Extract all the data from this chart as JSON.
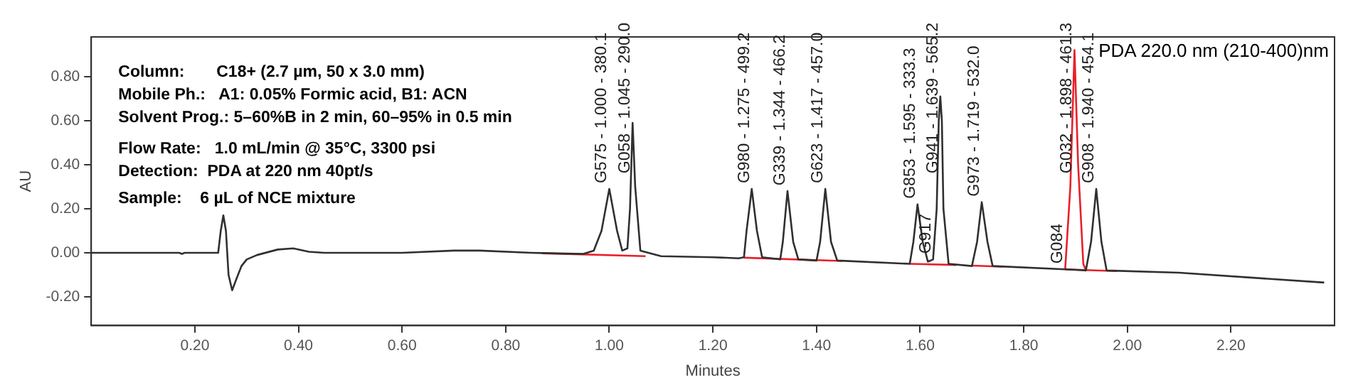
{
  "chart_data": {
    "type": "line",
    "xlabel": "Minutes",
    "ylabel": "AU",
    "xlim": [
      0,
      2.4
    ],
    "ylim": [
      -0.33,
      0.98
    ],
    "xticks": [
      {
        "value": 0.2,
        "label": "0.20"
      },
      {
        "value": 0.4,
        "label": "0.40"
      },
      {
        "value": 0.6,
        "label": "0.60"
      },
      {
        "value": 0.8,
        "label": "0.80"
      },
      {
        "value": 1.0,
        "label": "1.00"
      },
      {
        "value": 1.2,
        "label": "1.20"
      },
      {
        "value": 1.4,
        "label": "1.40"
      },
      {
        "value": 1.6,
        "label": "1.60"
      },
      {
        "value": 1.8,
        "label": "1.80"
      },
      {
        "value": 2.0,
        "label": "2.00"
      },
      {
        "value": 2.2,
        "label": "2.20"
      }
    ],
    "yticks": [
      {
        "value": -0.2,
        "label": "-0.20"
      },
      {
        "value": 0,
        "label": "0.00"
      },
      {
        "value": 0.2,
        "label": "0.20"
      },
      {
        "value": 0.4,
        "label": "0.40"
      },
      {
        "value": 0.6,
        "label": "0.60"
      },
      {
        "value": 0.8,
        "label": "0.80"
      }
    ],
    "grid": false,
    "legend": false,
    "marker": "none",
    "line_style": "solid",
    "series": [
      {
        "color": "#303030",
        "x": [
          0,
          0.17,
          0.175,
          0.18,
          0.245,
          0.25,
          0.255,
          0.26,
          0.265,
          0.272,
          0.28,
          0.29,
          0.3,
          0.32,
          0.36,
          0.39,
          0.42,
          0.45,
          0.6,
          0.7,
          0.75,
          0.85,
          0.95,
          0.97,
          0.985,
          1.0,
          1.015,
          1.025,
          1.035,
          1.04,
          1.045,
          1.05,
          1.06,
          1.1,
          1.2,
          1.25,
          1.26,
          1.265,
          1.275,
          1.285,
          1.295,
          1.33,
          1.335,
          1.344,
          1.355,
          1.365,
          1.4,
          1.407,
          1.417,
          1.428,
          1.44,
          1.58,
          1.587,
          1.595,
          1.605,
          1.615,
          1.625,
          1.632,
          1.636,
          1.639,
          1.642,
          1.645,
          1.655,
          1.7,
          1.71,
          1.719,
          1.73,
          1.74,
          1.88,
          1.92,
          1.93,
          1.94,
          1.95,
          1.96,
          2.1,
          2.38
        ],
        "values": [
          0,
          0,
          -0.005,
          0,
          0,
          0.1,
          0.17,
          0.1,
          -0.1,
          -0.17,
          -0.12,
          -0.06,
          -0.03,
          -0.01,
          0.015,
          0.02,
          0.005,
          0,
          0,
          0.01,
          0.01,
          0,
          -0.005,
          0.01,
          0.1,
          0.29,
          0.1,
          0.01,
          0.02,
          0.2,
          0.59,
          0.3,
          0.01,
          -0.015,
          -0.02,
          -0.025,
          -0.02,
          0.1,
          0.29,
          0.1,
          -0.02,
          -0.03,
          0.05,
          0.28,
          0.05,
          -0.03,
          -0.035,
          0.05,
          0.29,
          0.05,
          -0.035,
          -0.05,
          0.05,
          0.22,
          0.05,
          -0.04,
          -0.03,
          0.2,
          0.6,
          0.71,
          0.6,
          0.2,
          -0.05,
          -0.06,
          0.05,
          0.23,
          0.05,
          -0.06,
          -0.075,
          -0.08,
          0.05,
          0.29,
          0.05,
          -0.08,
          -0.09,
          -0.135
        ]
      },
      {
        "color": "#e8202a",
        "x": [
          1.88,
          1.89,
          1.898,
          1.905,
          1.915,
          1.92
        ],
        "values": [
          -0.075,
          0.3,
          0.92,
          0.4,
          -0.05,
          -0.08
        ]
      },
      {
        "color": "#e8202a",
        "x": [
          0.87,
          1.07,
          1.1,
          1.26,
          1.45,
          1.5,
          1.58,
          1.67,
          1.685,
          1.7,
          1.76,
          1.8,
          1.88,
          1.98
        ],
        "values": [
          -0.002,
          -0.015,
          null,
          -0.022,
          -0.037,
          null,
          -0.05,
          -0.055,
          null,
          -0.058,
          -0.063,
          null,
          -0.075,
          -0.083
        ]
      }
    ],
    "annotations": [
      "Column:       C18+ (2.7 µm, 50 x 3.0 mm)",
      "Mobile Ph.:   A1: 0.05% Formic acid, B1: ACN",
      "Solvent Prog.: 5–60%B in 2 min, 60–95% in 0.5 min",
      "Flow Rate:   1.0 mL/min @ 35°C, 3300 psi",
      "Detection:  PDA at 220 nm 40pt/s",
      "Sample:    6 µL of NCE mixture",
      "PDA 220.0 nm (210-400)nm",
      {
        "text": "G575 - 1.000 - 380.1",
        "x": 1.0,
        "y": 0.29
      },
      {
        "text": "G058 - 1.045 - 290.0",
        "x": 1.045,
        "y": 0.59
      },
      {
        "text": "G980 - 1.275 - 499.2",
        "x": 1.275,
        "y": 0.29
      },
      {
        "text": "G339 - 1.344 - 466.2",
        "x": 1.344,
        "y": 0.28
      },
      {
        "text": "G623 - 1.417 - 457.0",
        "x": 1.417,
        "y": 0.29
      },
      {
        "text": "G853 - 1.595 - 333.3",
        "x": 1.595,
        "y": 0.22
      },
      {
        "text": "G917",
        "x": 1.625,
        "y": -0.03
      },
      {
        "text": "G941 - 1.639 - 565.2",
        "x": 1.639,
        "y": 0.71
      },
      {
        "text": "G973 - 1.719 - 532.0",
        "x": 1.719,
        "y": 0.23
      },
      {
        "text": "G084",
        "x": 1.88,
        "y": -0.075
      },
      {
        "text": "G032 - 1.898 - 461.3",
        "x": 1.898,
        "y": 0.92
      },
      {
        "text": "G908 - 1.940 - 454.1",
        "x": 1.94,
        "y": 0.29
      }
    ]
  }
}
